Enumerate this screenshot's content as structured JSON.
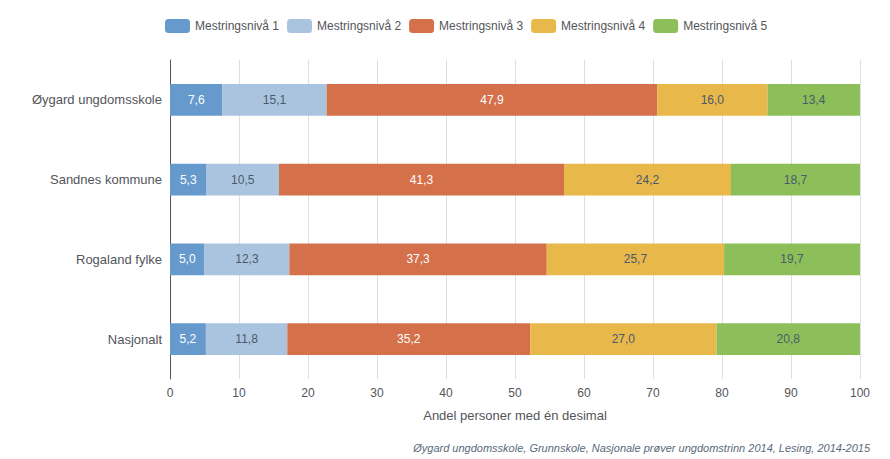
{
  "chart_data": {
    "type": "bar",
    "orientation": "horizontal",
    "stacked": true,
    "data_labels": true,
    "grid": true,
    "legend": "upper left",
    "categories": [
      "Øygard ungdomsskole",
      "Sandnes kommune",
      "Rogaland fylke",
      "Nasjonalt"
    ],
    "series": [
      {
        "name": "Mestringsnivå 1",
        "color": "#6699cc",
        "values": [
          7.6,
          5.3,
          5.0,
          5.2
        ],
        "value_labels": [
          "7,6",
          "5,3",
          "5,0",
          "5,2"
        ]
      },
      {
        "name": "Mestringsnivå 2",
        "color": "#aac4e0",
        "values": [
          15.1,
          10.5,
          12.3,
          11.8
        ],
        "value_labels": [
          "15,1",
          "10,5",
          "12,3",
          "11,8"
        ]
      },
      {
        "name": "Mestringsnivå 3",
        "color": "#d4704a",
        "values": [
          47.9,
          41.3,
          37.3,
          35.2
        ],
        "value_labels": [
          "47,9",
          "41,3",
          "37,3",
          "35,2"
        ]
      },
      {
        "name": "Mestringsnivå 4",
        "color": "#e8b84b",
        "values": [
          16.0,
          24.2,
          25.7,
          27.0
        ],
        "value_labels": [
          "16,0",
          "24,2",
          "25,7",
          "27,0"
        ]
      },
      {
        "name": "Mestringsnivå 5",
        "color": "#8cbf5a",
        "values": [
          13.4,
          18.7,
          19.7,
          20.8
        ],
        "value_labels": [
          "13,4",
          "18,7",
          "19,7",
          "20,8"
        ]
      }
    ],
    "xlabel": "Andel personer med én desimal",
    "xlim": [
      0,
      100
    ],
    "xticks": [
      0,
      10,
      20,
      30,
      40,
      50,
      60,
      70,
      80,
      90,
      100
    ],
    "annotations": [
      "Øygard ungdomsskole, Grunnskole, Nasjonale prøver ungdomstrinn 2014, Lesing, 2014-2015"
    ]
  }
}
